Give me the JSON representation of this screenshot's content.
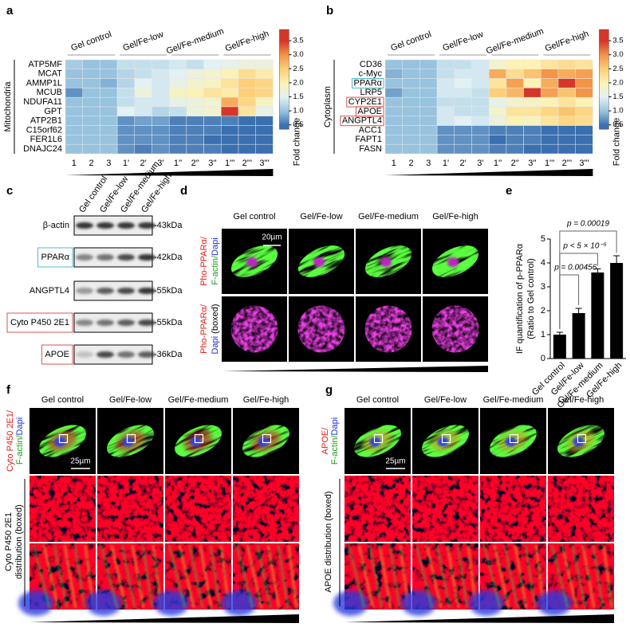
{
  "chart_data": [
    {
      "type": "heatmap",
      "panel_label": "a",
      "side_label": "Mitochondria",
      "groups": [
        "Gel control",
        "Gel/Fe-low",
        "Gel/Fe-medium",
        "Gel/Fe-high"
      ],
      "columns": [
        "1",
        "2",
        "3",
        "1'",
        "2'",
        "3'",
        "1''",
        "2''",
        "3''",
        "1'''",
        "2'''",
        "3'''"
      ],
      "rows": [
        "ATP5MF",
        "MCAT",
        "AMMP1L",
        "MCUB",
        "NDUFA11",
        "GPT",
        "ATP2B1",
        "C15orf62",
        "FER1L6",
        "DNAJC24"
      ],
      "values": [
        [
          1.1,
          1.0,
          1.0,
          1.3,
          1.3,
          1.3,
          1.4,
          1.3,
          1.5,
          1.6,
          1.7,
          1.7
        ],
        [
          1.0,
          1.0,
          1.0,
          1.2,
          1.3,
          1.4,
          1.5,
          1.7,
          1.8,
          2.0,
          2.3,
          2.1
        ],
        [
          1.0,
          1.0,
          0.9,
          1.2,
          1.5,
          1.4,
          1.6,
          1.8,
          1.9,
          2.2,
          2.5,
          2.4
        ],
        [
          0.7,
          1.0,
          1.0,
          1.3,
          1.7,
          1.4,
          1.9,
          2.0,
          2.2,
          2.1,
          2.5,
          2.4
        ],
        [
          1.0,
          1.0,
          1.0,
          1.3,
          1.4,
          1.4,
          1.6,
          1.7,
          1.8,
          2.8,
          2.4,
          1.9
        ],
        [
          1.0,
          1.0,
          1.0,
          1.5,
          1.4,
          1.2,
          1.3,
          1.7,
          1.8,
          3.5,
          2.2,
          1.6
        ],
        [
          1.0,
          1.0,
          1.0,
          0.7,
          0.8,
          0.8,
          0.6,
          0.6,
          0.6,
          0.6,
          0.5,
          0.5
        ],
        [
          1.0,
          1.0,
          1.0,
          0.7,
          0.7,
          0.7,
          0.6,
          0.6,
          0.6,
          0.5,
          0.5,
          0.5
        ],
        [
          1.0,
          1.0,
          1.0,
          0.7,
          0.7,
          0.7,
          0.6,
          0.6,
          0.5,
          0.5,
          0.5,
          0.5
        ],
        [
          1.0,
          1.0,
          1.0,
          0.7,
          0.6,
          0.7,
          0.6,
          0.6,
          0.6,
          0.5,
          0.5,
          0.5
        ]
      ],
      "clim": [
        0.35,
        3.9
      ],
      "colorbar_ticks": [
        0.5,
        {
          "value": 1,
          "label": "1.0"
        },
        1.5,
        {
          "value": 2,
          "label": "2.0"
        },
        2.5,
        {
          "value": 3,
          "label": "3.0"
        },
        3.5
      ],
      "colorbar_label": "Fold change",
      "colormap": [
        [
          0.5,
          "#3a6fb0"
        ],
        [
          1.0,
          "#97c3df"
        ],
        [
          1.5,
          "#e2f1f4"
        ],
        [
          2.0,
          "#fcf2b5"
        ],
        [
          2.5,
          "#fccf78"
        ],
        [
          3.0,
          "#f39449"
        ],
        [
          3.5,
          "#d6362a"
        ]
      ]
    },
    {
      "type": "heatmap",
      "panel_label": "b",
      "side_label": "Cytoplasm",
      "groups": [
        "Gel control",
        "Gel/Fe-low",
        "Gel/Fe-medium",
        "Gel/Fe-high"
      ],
      "columns": [
        "1",
        "2",
        "3",
        "1'",
        "2'",
        "3'",
        "1''",
        "2''",
        "3''",
        "1'''",
        "2'''",
        "3'''"
      ],
      "rows": [
        "CD36",
        "c-Myc",
        "PPARα",
        "LRP5",
        "CYP2E1",
        "APOE",
        "ANGPTL4",
        "ACC1",
        "FAPT1",
        "FASN"
      ],
      "row_box_colors": [
        null,
        null,
        "#4fb8c8",
        null,
        "#d9534f",
        "#d9534f",
        "#d9534f",
        null,
        null,
        null
      ],
      "values": [
        [
          1.0,
          1.0,
          1.0,
          1.3,
          1.3,
          1.4,
          1.8,
          2.0,
          2.0,
          2.2,
          2.3,
          2.2
        ],
        [
          0.9,
          1.0,
          1.0,
          1.3,
          1.4,
          1.4,
          2.8,
          2.3,
          2.6,
          3.0,
          2.8,
          2.9
        ],
        [
          1.0,
          1.0,
          1.0,
          1.4,
          1.5,
          1.4,
          2.2,
          2.9,
          2.0,
          2.8,
          3.5,
          3.0
        ],
        [
          0.8,
          1.0,
          1.0,
          1.4,
          1.4,
          1.3,
          2.5,
          2.7,
          3.5,
          2.9,
          2.6,
          3.0
        ],
        [
          1.0,
          1.0,
          1.0,
          1.3,
          1.3,
          1.3,
          1.6,
          1.8,
          1.9,
          2.0,
          2.2,
          2.0
        ],
        [
          1.0,
          1.0,
          1.0,
          1.4,
          1.3,
          1.3,
          1.8,
          2.2,
          2.2,
          2.4,
          2.6,
          2.4
        ],
        [
          1.0,
          1.0,
          1.0,
          1.4,
          1.5,
          1.4,
          1.7,
          2.0,
          1.9,
          2.2,
          2.4,
          2.3
        ],
        [
          1.0,
          1.0,
          1.0,
          0.7,
          0.7,
          0.7,
          0.6,
          0.6,
          0.6,
          0.5,
          0.5,
          0.5
        ],
        [
          1.0,
          1.0,
          1.0,
          0.7,
          0.7,
          0.7,
          0.5,
          0.6,
          0.6,
          0.5,
          0.5,
          0.5
        ],
        [
          1.0,
          1.0,
          1.0,
          0.7,
          0.7,
          0.7,
          0.6,
          0.6,
          0.5,
          0.5,
          0.5,
          0.5
        ]
      ],
      "clim": [
        0.35,
        3.9
      ],
      "colorbar_ticks": [
        0.5,
        {
          "value": 1,
          "label": "1.0"
        },
        1.5,
        {
          "value": 2,
          "label": "2.0"
        },
        2.5,
        {
          "value": 3,
          "label": "3.0"
        },
        3.5
      ],
      "colorbar_label": "Fold change",
      "colormap": [
        [
          0.5,
          "#3a6fb0"
        ],
        [
          1.0,
          "#97c3df"
        ],
        [
          1.5,
          "#e2f1f4"
        ],
        [
          2.0,
          "#fcf2b5"
        ],
        [
          2.5,
          "#fccf78"
        ],
        [
          3.0,
          "#f39449"
        ],
        [
          3.5,
          "#d6362a"
        ]
      ]
    },
    {
      "type": "bar",
      "panel_label": "e",
      "categories": [
        "Gel control",
        "Gel/Fe-low",
        "Gel/Fe-medium",
        "Gel/Fe-high"
      ],
      "values": [
        1.0,
        1.9,
        3.6,
        4.0
      ],
      "errors": [
        0.1,
        0.2,
        0.15,
        0.3
      ],
      "color": "#000000",
      "ylim": [
        0,
        5
      ],
      "yticks": [
        0,
        1,
        2,
        3,
        4,
        5
      ],
      "ylabel": [
        "IF quantification of p-PPARα",
        "(Ratio to Gel control)"
      ],
      "annotations": [
        "p = 0.00019",
        "p < 5 × 10⁻⁵",
        "p = 0.00456"
      ]
    }
  ],
  "panel_c": {
    "label": "c",
    "lanes": [
      "Gel control",
      "Gel/Fe-low",
      "Gel/Fe-medium",
      "Gel/Fe-high"
    ],
    "rows": [
      {
        "protein": "β-actin",
        "size": "-43kDa"
      },
      {
        "protein": "PPARα",
        "size": "-42kDa",
        "box_color": "#4fb8c8"
      },
      {
        "protein": "ANGPTL4",
        "size": "-55kDa"
      },
      {
        "protein": "Cyto P450 2E1",
        "size": "-55kDa",
        "box_color": "#d9534f"
      },
      {
        "protein": "APOE",
        "size": "-36kDa",
        "box_color": "#d9534f"
      }
    ]
  },
  "panel_d": {
    "label": "d",
    "columns": [
      "Gel control",
      "Gel/Fe-low",
      "Gel/Fe-medium",
      "Gel/Fe-high"
    ],
    "scale_bar": "20µm",
    "row_labels": [
      [
        [
          {
            "text": "Pho-PPARα/",
            "color": "#e0201b"
          }
        ],
        [
          {
            "text": "F-actin/",
            "color": "#1a9e1a"
          },
          {
            "text": "Dapi",
            "color": "#1f2fd6"
          }
        ]
      ],
      [
        [
          {
            "text": "Pho-PPARα/",
            "color": "#e0201b"
          }
        ],
        [
          {
            "text": "Dapi",
            "color": "#1f2fd6"
          },
          {
            "text": " (boxed)",
            "color": "#000000"
          }
        ]
      ]
    ]
  },
  "panel_f": {
    "label": "f",
    "columns": [
      "Gel control",
      "Gel/Fe-low",
      "Gel/Fe-medium",
      "Gel/Fe-high"
    ],
    "scale_bar": "25µm",
    "row_labels": [
      [
        [
          {
            "text": "Cyto P450 2E1/",
            "color": "#e0201b"
          }
        ],
        [
          {
            "text": "F-actin/",
            "color": "#1a9e1a"
          },
          {
            "text": "Dapi",
            "color": "#1f2fd6"
          }
        ]
      ],
      [
        [
          {
            "text": "Cyto P450 2E1",
            "color": "#000000"
          }
        ],
        [
          {
            "text": "distribution (boxed)",
            "color": "#000000"
          }
        ]
      ]
    ]
  },
  "panel_g": {
    "label": "g",
    "columns": [
      "Gel control",
      "Gel/Fe-low",
      "Gel/Fe-medium",
      "Gel/Fe-high"
    ],
    "scale_bar": "25µm",
    "row_labels": [
      [
        [
          {
            "text": "APOE/",
            "color": "#e0201b"
          }
        ],
        [
          {
            "text": "F-actin/",
            "color": "#1a9e1a"
          },
          {
            "text": "Dapi",
            "color": "#1f2fd6"
          }
        ]
      ],
      [
        [
          {
            "text": "APOE distribution (boxed)",
            "color": "#000000"
          }
        ]
      ]
    ]
  }
}
